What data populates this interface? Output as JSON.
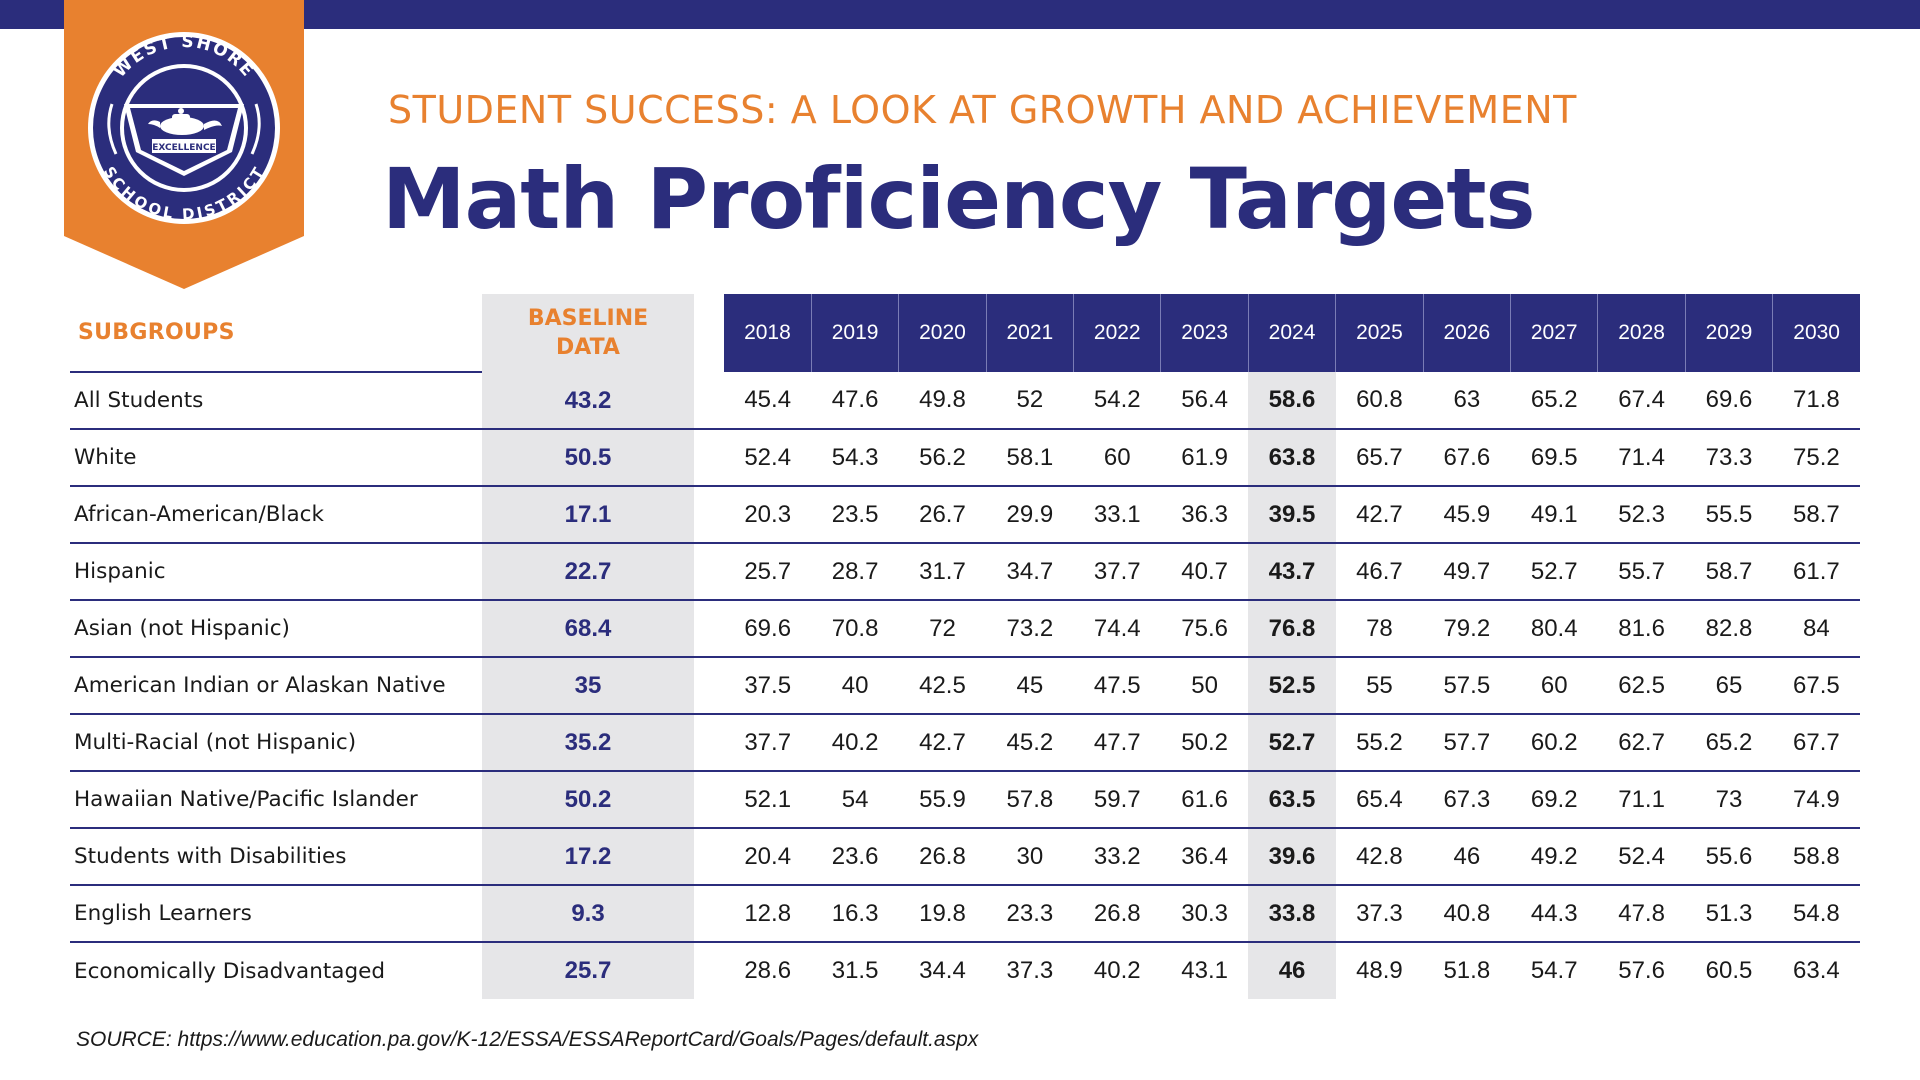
{
  "header": {
    "subtitle": "STUDENT SUCCESS: A LOOK AT GROWTH AND ACHIEVEMENT",
    "title": "Math Proficiency Targets"
  },
  "logo": {
    "top_text": "WEST SHORE",
    "bottom_text": "SCHOOL DISTRICT",
    "banner_text": "EXCELLENCE"
  },
  "colors": {
    "navy": "#2b2d7c",
    "orange": "#e8812f",
    "light_gray": "#e6e6e8"
  },
  "table": {
    "subgroups_header": "SUBGROUPS",
    "baseline_header_line1": "BASELINE",
    "baseline_header_line2": "DATA",
    "years": [
      "2018",
      "2019",
      "2020",
      "2021",
      "2022",
      "2023",
      "2024",
      "2025",
      "2026",
      "2027",
      "2028",
      "2029",
      "2030"
    ],
    "highlight_year": "2024",
    "rows": [
      {
        "subgroup": "All Students",
        "baseline": "43.2",
        "values": [
          "45.4",
          "47.6",
          "49.8",
          "52",
          "54.2",
          "56.4",
          "58.6",
          "60.8",
          "63",
          "65.2",
          "67.4",
          "69.6",
          "71.8"
        ]
      },
      {
        "subgroup": "White",
        "baseline": "50.5",
        "values": [
          "52.4",
          "54.3",
          "56.2",
          "58.1",
          "60",
          "61.9",
          "63.8",
          "65.7",
          "67.6",
          "69.5",
          "71.4",
          "73.3",
          "75.2"
        ]
      },
      {
        "subgroup": "African-American/Black",
        "baseline": "17.1",
        "values": [
          "20.3",
          "23.5",
          "26.7",
          "29.9",
          "33.1",
          "36.3",
          "39.5",
          "42.7",
          "45.9",
          "49.1",
          "52.3",
          "55.5",
          "58.7"
        ]
      },
      {
        "subgroup": "Hispanic",
        "baseline": "22.7",
        "values": [
          "25.7",
          "28.7",
          "31.7",
          "34.7",
          "37.7",
          "40.7",
          "43.7",
          "46.7",
          "49.7",
          "52.7",
          "55.7",
          "58.7",
          "61.7"
        ]
      },
      {
        "subgroup": "Asian (not Hispanic)",
        "baseline": "68.4",
        "values": [
          "69.6",
          "70.8",
          "72",
          "73.2",
          "74.4",
          "75.6",
          "76.8",
          "78",
          "79.2",
          "80.4",
          "81.6",
          "82.8",
          "84"
        ]
      },
      {
        "subgroup": "American Indian or Alaskan Native",
        "baseline": "35",
        "values": [
          "37.5",
          "40",
          "42.5",
          "45",
          "47.5",
          "50",
          "52.5",
          "55",
          "57.5",
          "60",
          "62.5",
          "65",
          "67.5"
        ]
      },
      {
        "subgroup": "Multi-Racial (not Hispanic)",
        "baseline": "35.2",
        "values": [
          "37.7",
          "40.2",
          "42.7",
          "45.2",
          "47.7",
          "50.2",
          "52.7",
          "55.2",
          "57.7",
          "60.2",
          "62.7",
          "65.2",
          "67.7"
        ]
      },
      {
        "subgroup": "Hawaiian Native/Pacific Islander",
        "baseline": "50.2",
        "values": [
          "52.1",
          "54",
          "55.9",
          "57.8",
          "59.7",
          "61.6",
          "63.5",
          "65.4",
          "67.3",
          "69.2",
          "71.1",
          "73",
          "74.9"
        ]
      },
      {
        "subgroup": "Students with Disabilities",
        "baseline": "17.2",
        "values": [
          "20.4",
          "23.6",
          "26.8",
          "30",
          "33.2",
          "36.4",
          "39.6",
          "42.8",
          "46",
          "49.2",
          "52.4",
          "55.6",
          "58.8"
        ]
      },
      {
        "subgroup": "English Learners",
        "baseline": "9.3",
        "values": [
          "12.8",
          "16.3",
          "19.8",
          "23.3",
          "26.8",
          "30.3",
          "33.8",
          "37.3",
          "40.8",
          "44.3",
          "47.8",
          "51.3",
          "54.8"
        ]
      },
      {
        "subgroup": "Economically Disadvantaged",
        "baseline": "25.7",
        "values": [
          "28.6",
          "31.5",
          "34.4",
          "37.3",
          "40.2",
          "43.1",
          "46",
          "48.9",
          "51.8",
          "54.7",
          "57.6",
          "60.5",
          "63.4"
        ]
      }
    ]
  },
  "source": "SOURCE: https://www.education.pa.gov/K-12/ESSA/ESSAReportCard/Goals/Pages/default.aspx"
}
